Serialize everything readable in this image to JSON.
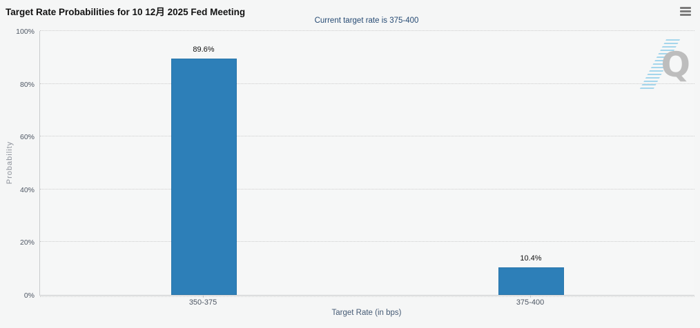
{
  "menu": {
    "icon": "hamburger-icon"
  },
  "watermark": {
    "letter": "Q"
  },
  "chart_data": {
    "type": "bar",
    "title": "Target Rate Probabilities for 10 12月 2025 Fed Meeting",
    "subtitle": "Current target rate is 375-400",
    "categories": [
      "350-375",
      "375-400"
    ],
    "values": [
      89.6,
      10.4
    ],
    "data_labels": [
      "89.6%",
      "10.4%"
    ],
    "xlabel": "Target Rate (in bps)",
    "ylabel": "Probability",
    "ylim": [
      0,
      100
    ],
    "yticks": [
      "0%",
      "20%",
      "40%",
      "60%",
      "80%",
      "100%"
    ],
    "grid": "dotted-horizontal",
    "legend": "none",
    "bar_color": "#2d7fb8",
    "subtitle_color": "#264a73"
  }
}
